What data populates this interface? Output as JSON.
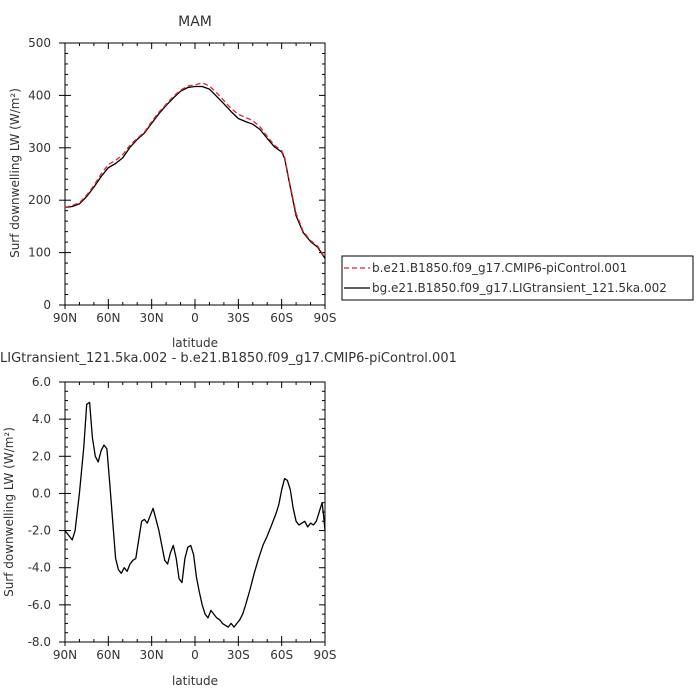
{
  "chart_data": [
    {
      "type": "line",
      "title": "MAM",
      "xlabel": "latitude",
      "ylabel": "Surf downwelling LW (W/m²)",
      "xlim": [
        90,
        -90
      ],
      "ylim": [
        0,
        500
      ],
      "xticks": [
        "90N",
        "60N",
        "30N",
        "0",
        "30S",
        "60S",
        "90S"
      ],
      "yticks": [
        "0",
        "100",
        "200",
        "300",
        "400",
        "500"
      ],
      "legend_position": "right",
      "series": [
        {
          "name": "b.e21.B1850.f09_g17.CMIP6-piControl.001",
          "color": "#e8222a",
          "dash": "dashed",
          "x": [
            90,
            85,
            80,
            75,
            70,
            65,
            60,
            55,
            50,
            45,
            40,
            35,
            30,
            25,
            20,
            15,
            10,
            5,
            0,
            -5,
            -10,
            -15,
            -20,
            -25,
            -30,
            -35,
            -40,
            -45,
            -50,
            -55,
            -60,
            -62,
            -65,
            -70,
            -75,
            -80,
            -85,
            -90
          ],
          "y": [
            186,
            190,
            195,
            210,
            228,
            250,
            268,
            276,
            287,
            305,
            318,
            330,
            350,
            368,
            383,
            398,
            410,
            418,
            420,
            424,
            418,
            405,
            390,
            375,
            364,
            358,
            352,
            340,
            322,
            305,
            294,
            283,
            240,
            175,
            140,
            123,
            112,
            90
          ]
        },
        {
          "name": "bg.e21.B1850.f09_g17.LIGtransient_121.5ka.002",
          "color": "#000000",
          "dash": "solid",
          "x": [
            90,
            85,
            80,
            75,
            70,
            65,
            60,
            55,
            50,
            45,
            40,
            35,
            30,
            25,
            20,
            15,
            10,
            5,
            0,
            -5,
            -10,
            -15,
            -20,
            -25,
            -30,
            -35,
            -40,
            -45,
            -50,
            -55,
            -60,
            -62,
            -65,
            -70,
            -75,
            -80,
            -85,
            -90
          ],
          "y": [
            186,
            188,
            193,
            207,
            225,
            245,
            262,
            270,
            281,
            301,
            316,
            328,
            347,
            365,
            381,
            395,
            408,
            415,
            417,
            417,
            412,
            398,
            384,
            369,
            356,
            350,
            345,
            335,
            318,
            302,
            292,
            280,
            238,
            170,
            138,
            121,
            110,
            89
          ]
        }
      ]
    },
    {
      "type": "line",
      "title": "LIGtransient_121.5ka.002 - b.e21.B1850.f09_g17.CMIP6-piControl.001",
      "xlabel": "latitude",
      "ylabel": "Surf downwelling LW (W/m²)",
      "xlim": [
        90,
        -90
      ],
      "ylim": [
        -8,
        6
      ],
      "xticks": [
        "90N",
        "60N",
        "30N",
        "0",
        "30S",
        "60S",
        "90S"
      ],
      "yticks": [
        "-8.0",
        "-6.0",
        "-4.0",
        "-2.0",
        "0.0",
        "2.0",
        "4.0",
        "6.0"
      ],
      "series": [
        {
          "name": "",
          "color": "#000000",
          "x": [
            90,
            87,
            85,
            83,
            80,
            77,
            75,
            73,
            71,
            69,
            67,
            65,
            63,
            61,
            59,
            57,
            55,
            53,
            51,
            49,
            47,
            45,
            43,
            41,
            39,
            37,
            35,
            33,
            31,
            29,
            27,
            25,
            23,
            21,
            19,
            17,
            15,
            13,
            11,
            9,
            7,
            5,
            3,
            1,
            -1,
            -3,
            -5,
            -7,
            -9,
            -11,
            -13,
            -15,
            -17,
            -19,
            -21,
            -23,
            -25,
            -27,
            -29,
            -31,
            -33,
            -35,
            -38,
            -41,
            -44,
            -47,
            -50,
            -53,
            -56,
            -58,
            -60,
            -62,
            -64,
            -66,
            -68,
            -70,
            -72,
            -74,
            -76,
            -78,
            -80,
            -82,
            -84,
            -86,
            -88,
            -89,
            -90
          ],
          "y": [
            -2.0,
            -2.3,
            -2.5,
            -2.0,
            0.0,
            2.5,
            4.8,
            4.9,
            3.0,
            2.0,
            1.7,
            2.3,
            2.6,
            2.4,
            0.5,
            -1.5,
            -3.5,
            -4.1,
            -4.3,
            -4.0,
            -4.2,
            -3.8,
            -3.6,
            -3.5,
            -2.5,
            -1.5,
            -1.4,
            -1.6,
            -1.2,
            -0.8,
            -1.4,
            -2.0,
            -2.8,
            -3.6,
            -3.8,
            -3.2,
            -2.8,
            -3.5,
            -4.6,
            -4.8,
            -3.5,
            -2.9,
            -2.8,
            -3.3,
            -4.5,
            -5.3,
            -6.0,
            -6.5,
            -6.7,
            -6.3,
            -6.5,
            -6.7,
            -6.8,
            -7.0,
            -7.1,
            -7.2,
            -7.0,
            -7.2,
            -7.0,
            -6.8,
            -6.5,
            -6.0,
            -5.2,
            -4.3,
            -3.5,
            -2.8,
            -2.3,
            -1.7,
            -1.1,
            -0.6,
            0.2,
            0.8,
            0.7,
            0.2,
            -0.8,
            -1.5,
            -1.7,
            -1.6,
            -1.5,
            -1.8,
            -1.6,
            -1.7,
            -1.5,
            -1.0,
            -0.5,
            -1.2,
            -2.0
          ]
        }
      ]
    }
  ]
}
